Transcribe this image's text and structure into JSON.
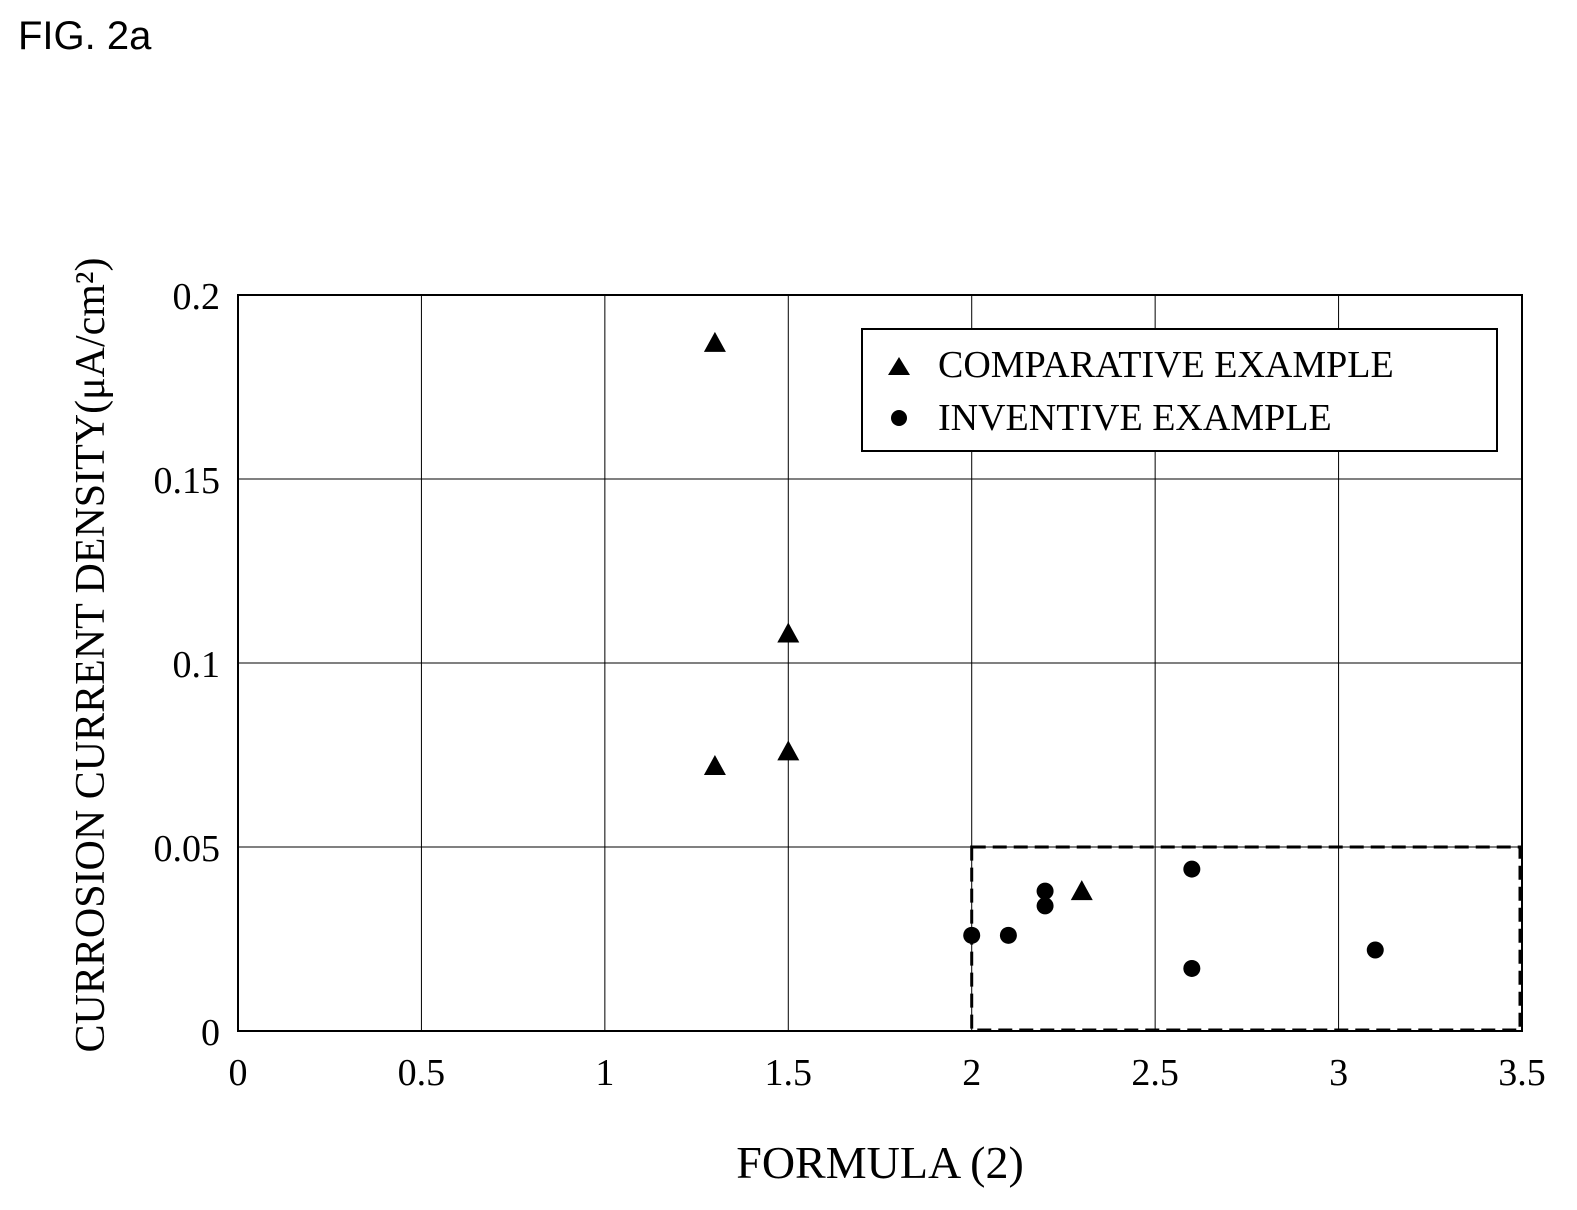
{
  "figure_label": "FIG. 2a",
  "chart_data": {
    "type": "scatter",
    "title": "",
    "xlabel": "FORMULA (2)",
    "ylabel": "CURROSION CURRENT DENSITY(μA/cm²)",
    "xlim": [
      0,
      3.5
    ],
    "ylim": [
      0,
      0.2
    ],
    "x_ticks": [
      "0",
      "0.5",
      "1",
      "1.5",
      "2",
      "2.5",
      "3",
      "3.5"
    ],
    "y_ticks": [
      "0",
      "0.05",
      "0.1",
      "0.15",
      "0.2"
    ],
    "grid": true,
    "legend_position": "top-right",
    "series": [
      {
        "name": "COMPARATIVE EXAMPLE",
        "marker": "triangle",
        "points": [
          {
            "x": 1.3,
            "y": 0.187
          },
          {
            "x": 1.5,
            "y": 0.108
          },
          {
            "x": 1.5,
            "y": 0.076
          },
          {
            "x": 1.3,
            "y": 0.072
          },
          {
            "x": 2.3,
            "y": 0.038
          }
        ]
      },
      {
        "name": "INVENTIVE EXAMPLE",
        "marker": "circle",
        "points": [
          {
            "x": 2.6,
            "y": 0.044
          },
          {
            "x": 2.2,
            "y": 0.038
          },
          {
            "x": 2.2,
            "y": 0.034
          },
          {
            "x": 2.0,
            "y": 0.026
          },
          {
            "x": 2.1,
            "y": 0.026
          },
          {
            "x": 2.6,
            "y": 0.017
          },
          {
            "x": 3.1,
            "y": 0.022
          }
        ]
      }
    ],
    "highlight_region": {
      "x": [
        2,
        3.5
      ],
      "y": [
        0,
        0.05
      ],
      "style": "dashed"
    }
  }
}
